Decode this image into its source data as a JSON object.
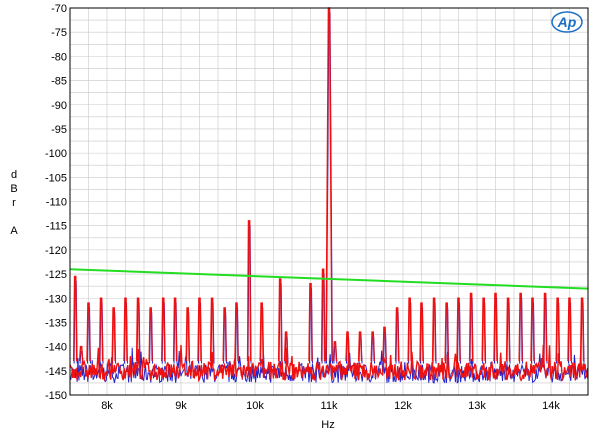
{
  "chart_data": {
    "type": "line",
    "title": "",
    "xlabel": "Hz",
    "ylabel_chars": [
      "d",
      "B",
      "r",
      "A"
    ],
    "logo_text": "Ap",
    "xlim": [
      7500,
      14500
    ],
    "ylim": [
      -150,
      -70
    ],
    "y_ticks": [
      -70,
      -75,
      -80,
      -85,
      -90,
      -95,
      -100,
      -105,
      -110,
      -115,
      -120,
      -125,
      -130,
      -135,
      -140,
      -145,
      -150
    ],
    "y_tick_labels": [
      "-70",
      "-75",
      "-80",
      "-85",
      "-90",
      "-95",
      "-100",
      "-105",
      "-110",
      "-115",
      "-120",
      "-125",
      "-130",
      "-135",
      "-140",
      "-145",
      "-150"
    ],
    "x_ticks": [
      8000,
      9000,
      10000,
      11000,
      12000,
      13000,
      14000
    ],
    "x_tick_labels": [
      "8k",
      "9k",
      "10k",
      "11k",
      "12k",
      "13k",
      "14k"
    ],
    "grid": true,
    "colors": {
      "red": "#ee1111",
      "blue": "#2222cc",
      "green": "#22dd22",
      "grid": "#c8c8c8",
      "logo": "#1a6fc4"
    },
    "series": [
      {
        "color": "red",
        "noise_floor": -145,
        "peaks": [
          {
            "x": 7570,
            "y": -125.5
          },
          {
            "x": 7650,
            "y": -140
          },
          {
            "x": 7750,
            "y": -131
          },
          {
            "x": 7920,
            "y": -130
          },
          {
            "x": 8090,
            "y": -132
          },
          {
            "x": 8250,
            "y": -130
          },
          {
            "x": 8420,
            "y": -130
          },
          {
            "x": 8590,
            "y": -132
          },
          {
            "x": 8760,
            "y": -130
          },
          {
            "x": 8920,
            "y": -130
          },
          {
            "x": 9090,
            "y": -132
          },
          {
            "x": 9250,
            "y": -130
          },
          {
            "x": 9420,
            "y": -130
          },
          {
            "x": 9590,
            "y": -132
          },
          {
            "x": 9750,
            "y": -131
          },
          {
            "x": 9920,
            "y": -114
          },
          {
            "x": 10090,
            "y": -131
          },
          {
            "x": 10340,
            "y": -126
          },
          {
            "x": 10420,
            "y": -137
          },
          {
            "x": 10750,
            "y": -127
          },
          {
            "x": 10920,
            "y": -124
          },
          {
            "x": 11000,
            "y": -70
          },
          {
            "x": 11080,
            "y": -139
          },
          {
            "x": 11250,
            "y": -137
          },
          {
            "x": 11420,
            "y": -137
          },
          {
            "x": 11590,
            "y": -137
          },
          {
            "x": 11750,
            "y": -136
          },
          {
            "x": 11920,
            "y": -132
          },
          {
            "x": 12090,
            "y": -130
          },
          {
            "x": 12250,
            "y": -131
          },
          {
            "x": 12420,
            "y": -130
          },
          {
            "x": 12590,
            "y": -131
          },
          {
            "x": 12750,
            "y": -130
          },
          {
            "x": 12920,
            "y": -129
          },
          {
            "x": 13090,
            "y": -130
          },
          {
            "x": 13250,
            "y": -129
          },
          {
            "x": 13420,
            "y": -130
          },
          {
            "x": 13590,
            "y": -129
          },
          {
            "x": 13750,
            "y": -130
          },
          {
            "x": 13920,
            "y": -129
          },
          {
            "x": 14090,
            "y": -130
          },
          {
            "x": 14250,
            "y": -130
          },
          {
            "x": 14420,
            "y": -130
          }
        ]
      },
      {
        "color": "blue",
        "noise_floor": -145.5,
        "peaks": []
      },
      {
        "color": "green",
        "points": [
          {
            "x": 7500,
            "y": -124
          },
          {
            "x": 14500,
            "y": -128
          }
        ]
      }
    ]
  }
}
